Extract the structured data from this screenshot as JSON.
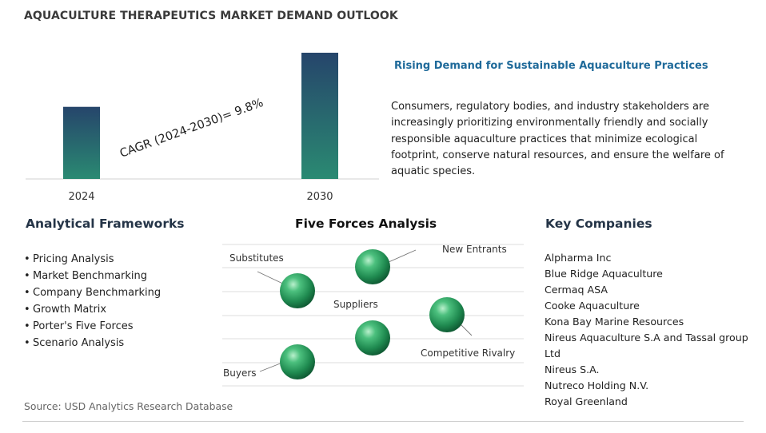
{
  "title": "AQUACULTURE THERAPEUTICS MARKET DEMAND OUTLOOK",
  "colors": {
    "bar_top": "#26456b",
    "bar_bottom": "#2a8a72",
    "heading_blue": "#1f6a9a",
    "sphere": "#2fa866"
  },
  "chart_data": {
    "type": "bar",
    "categories": [
      "2024",
      "2030"
    ],
    "series": [
      {
        "values": [
          1.0,
          1.75
        ]
      }
    ],
    "annotation": "CAGR (2024-2030)=  9.8%",
    "title": "",
    "xlabel": "",
    "ylabel": "",
    "grid": false
  },
  "highlight": {
    "title": "Rising Demand for Sustainable Aquaculture Practices",
    "body": "Consumers, regulatory bodies, and industry stakeholders are increasingly prioritizing environmentally friendly and socially responsible aquaculture practices that minimize ecological footprint, conserve natural resources, and ensure the welfare of aquatic species."
  },
  "frameworks": {
    "title": "Analytical Frameworks",
    "bullet": "•",
    "items": [
      "Pricing Analysis",
      "Market Benchmarking",
      "Company Benchmarking",
      "Growth Matrix",
      "Porter's Five Forces",
      "Scenario Analysis"
    ]
  },
  "five_forces": {
    "title": "Five Forces Analysis",
    "labels": {
      "substitutes": "Substitutes",
      "new_entrants": "New Entrants",
      "suppliers": "Suppliers",
      "competitive_rivalry": "Competitive Rivalry",
      "buyers": "Buyers"
    }
  },
  "companies": {
    "title": "Key Companies",
    "items": [
      "Alpharma Inc",
      "Blue Ridge Aquaculture",
      "Cermaq ASA",
      "Cooke Aquaculture",
      "Kona Bay Marine Resources",
      "Nireus Aquaculture S.A and Tassal group Ltd",
      "Nireus S.A.",
      "Nutreco Holding N.V.",
      "Royal Greenland"
    ]
  },
  "source": "Source: USD Analytics Research Database"
}
